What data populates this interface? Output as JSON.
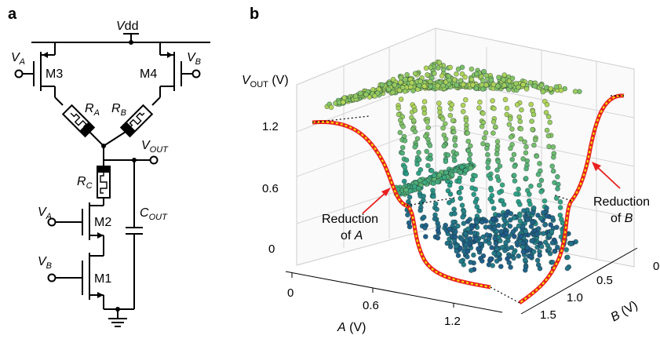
{
  "panel_a": {
    "label": "a",
    "vdd_italic": "V",
    "vdd_rest": "dd",
    "va_left": {
      "main": "V",
      "sub": "A"
    },
    "vb_right": {
      "main": "V",
      "sub": "B"
    },
    "m3": "M3",
    "m4": "M4",
    "ra": {
      "main": "R",
      "sub": "A"
    },
    "rb": {
      "main": "R",
      "sub": "B"
    },
    "vout": {
      "main": "V",
      "sub": "OUT"
    },
    "rc": {
      "main": "R",
      "sub": "C"
    },
    "va_low": {
      "main": "V",
      "sub": "A"
    },
    "m2": "M2",
    "cout": {
      "main": "C",
      "sub": "OUT"
    },
    "vb_low": {
      "main": "V",
      "sub": "B"
    },
    "m1": "M1"
  },
  "panel_b": {
    "label": "b",
    "z_label_italic": "V",
    "z_label_sub": "OUT",
    "z_label_unit": " (V)",
    "z_ticks": [
      "1.2",
      "0.6",
      "0"
    ],
    "a_ticks": [
      "0",
      "0.6",
      "1.2"
    ],
    "a_label_italic": "A",
    "a_label_unit": " (V)",
    "b_ticks": [
      "0",
      "0.5",
      "1.0",
      "1.5"
    ],
    "b_label_italic": "B",
    "b_label_unit": " (V)",
    "annot_a_line1": "Reduction",
    "annot_a_line2": "of ",
    "annot_a_italic": "A",
    "annot_b_line1": "Reduction",
    "annot_b_line2": "of ",
    "annot_b_italic": "B",
    "colors": {
      "high": "#b5d657",
      "mid": "#2aa187",
      "low": "#1f4f8a",
      "curve_outer": "#e82020",
      "curve_inner": "#f2e200"
    }
  }
}
